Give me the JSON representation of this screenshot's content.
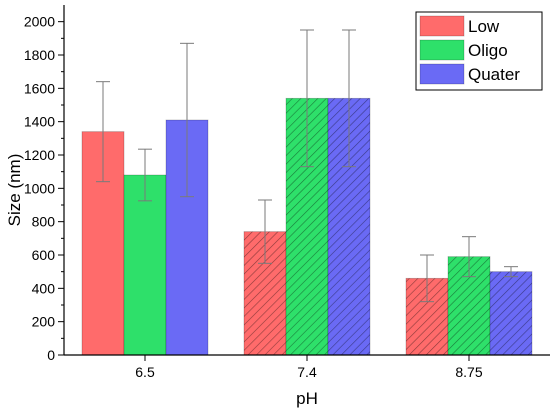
{
  "chart_data": {
    "type": "bar",
    "xlabel": "pH",
    "ylabel": "Size (nm)",
    "categories": [
      "6.5",
      "7.4",
      "8.75"
    ],
    "ylim": [
      0,
      2100
    ],
    "yticks": [
      0,
      200,
      400,
      600,
      800,
      1000,
      1200,
      1400,
      1600,
      1800,
      2000
    ],
    "grid": false,
    "legend_position": "top-right",
    "series": [
      {
        "name": "Low",
        "color": "#ff6b6b",
        "values": [
          1340,
          740,
          460
        ],
        "error": [
          300,
          190,
          140
        ],
        "hatched": [
          false,
          true,
          true
        ]
      },
      {
        "name": "Oligo",
        "color": "#2ee06a",
        "values": [
          1080,
          1540,
          590
        ],
        "error": [
          155,
          410,
          120
        ],
        "hatched": [
          false,
          true,
          true
        ]
      },
      {
        "name": "Quater",
        "color": "#6a6af5",
        "values": [
          1410,
          1540,
          500
        ],
        "error": [
          460,
          410,
          30
        ],
        "hatched": [
          false,
          true,
          true
        ]
      }
    ]
  }
}
